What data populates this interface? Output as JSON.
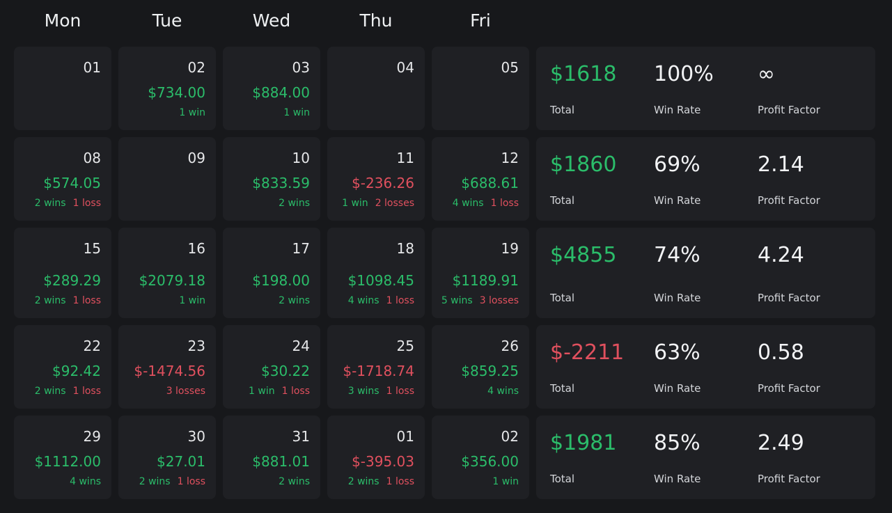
{
  "days": [
    "Mon",
    "Tue",
    "Wed",
    "Thu",
    "Fri"
  ],
  "colors": {
    "positive": "#2bbd6a",
    "negative": "#e0505e"
  },
  "weeks": [
    {
      "days": [
        {
          "date": "01",
          "pnl": "",
          "wins": "",
          "losses": ""
        },
        {
          "date": "02",
          "pnl": "$734.00",
          "wins": "1 win",
          "losses": ""
        },
        {
          "date": "03",
          "pnl": "$884.00",
          "wins": "1 win",
          "losses": ""
        },
        {
          "date": "04",
          "pnl": "",
          "wins": "",
          "losses": ""
        },
        {
          "date": "05",
          "pnl": "",
          "wins": "",
          "losses": ""
        }
      ],
      "summary": {
        "total": "$1618",
        "total_label": "Total",
        "win_rate": "100%",
        "win_rate_label": "Win Rate",
        "profit_factor": "∞",
        "profit_factor_label": "Profit Factor"
      }
    },
    {
      "days": [
        {
          "date": "08",
          "pnl": "$574.05",
          "wins": "2 wins",
          "losses": "1 loss"
        },
        {
          "date": "09",
          "pnl": "",
          "wins": "",
          "losses": ""
        },
        {
          "date": "10",
          "pnl": "$833.59",
          "wins": "2 wins",
          "losses": ""
        },
        {
          "date": "11",
          "pnl": "$-236.26",
          "wins": "1 win",
          "losses": "2 losses"
        },
        {
          "date": "12",
          "pnl": "$688.61",
          "wins": "4 wins",
          "losses": "1 loss"
        }
      ],
      "summary": {
        "total": "$1860",
        "total_label": "Total",
        "win_rate": "69%",
        "win_rate_label": "Win Rate",
        "profit_factor": "2.14",
        "profit_factor_label": "Profit Factor"
      }
    },
    {
      "days": [
        {
          "date": "15",
          "pnl": "$289.29",
          "wins": "2 wins",
          "losses": "1 loss"
        },
        {
          "date": "16",
          "pnl": "$2079.18",
          "wins": "1 win",
          "losses": ""
        },
        {
          "date": "17",
          "pnl": "$198.00",
          "wins": "2 wins",
          "losses": ""
        },
        {
          "date": "18",
          "pnl": "$1098.45",
          "wins": "4 wins",
          "losses": "1 loss"
        },
        {
          "date": "19",
          "pnl": "$1189.91",
          "wins": "5 wins",
          "losses": "3 losses"
        }
      ],
      "summary": {
        "total": "$4855",
        "total_label": "Total",
        "win_rate": "74%",
        "win_rate_label": "Win Rate",
        "profit_factor": "4.24",
        "profit_factor_label": "Profit Factor"
      }
    },
    {
      "days": [
        {
          "date": "22",
          "pnl": "$92.42",
          "wins": "2 wins",
          "losses": "1 loss"
        },
        {
          "date": "23",
          "pnl": "$-1474.56",
          "wins": "",
          "losses": "3 losses"
        },
        {
          "date": "24",
          "pnl": "$30.22",
          "wins": "1 win",
          "losses": "1 loss"
        },
        {
          "date": "25",
          "pnl": "$-1718.74",
          "wins": "3 wins",
          "losses": "1 loss"
        },
        {
          "date": "26",
          "pnl": "$859.25",
          "wins": "4 wins",
          "losses": ""
        }
      ],
      "summary": {
        "total": "$-2211",
        "total_label": "Total",
        "win_rate": "63%",
        "win_rate_label": "Win Rate",
        "profit_factor": "0.58",
        "profit_factor_label": "Profit Factor"
      }
    },
    {
      "days": [
        {
          "date": "29",
          "pnl": "$1112.00",
          "wins": "4 wins",
          "losses": ""
        },
        {
          "date": "30",
          "pnl": "$27.01",
          "wins": "2 wins",
          "losses": "1 loss"
        },
        {
          "date": "31",
          "pnl": "$881.01",
          "wins": "2 wins",
          "losses": ""
        },
        {
          "date": "01",
          "pnl": "$-395.03",
          "wins": "2 wins",
          "losses": "1 loss"
        },
        {
          "date": "02",
          "pnl": "$356.00",
          "wins": "1 win",
          "losses": ""
        }
      ],
      "summary": {
        "total": "$1981",
        "total_label": "Total",
        "win_rate": "85%",
        "win_rate_label": "Win Rate",
        "profit_factor": "2.49",
        "profit_factor_label": "Profit Factor"
      }
    }
  ]
}
